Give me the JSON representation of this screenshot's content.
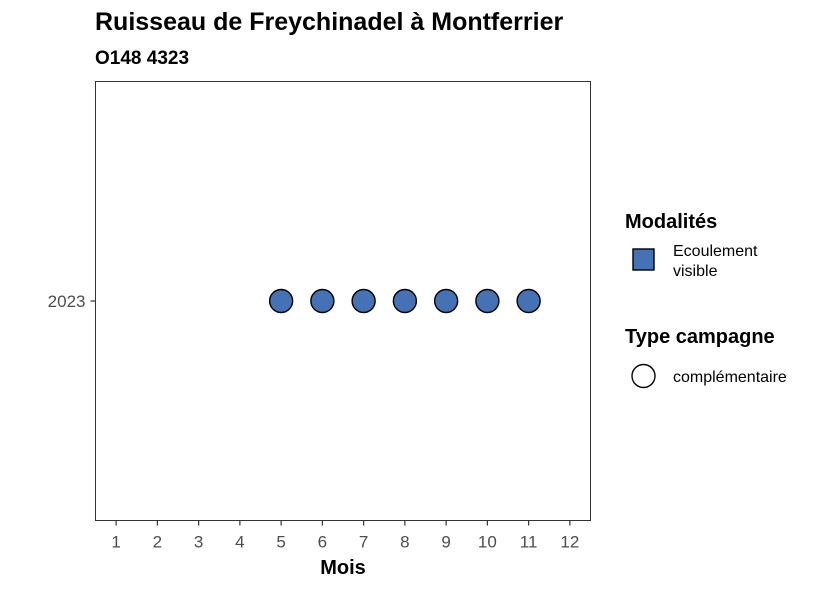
{
  "chart_data": {
    "type": "scatter",
    "title": "Ruisseau de Freychinadel à Montferrier",
    "subtitle": "O148 4323",
    "xlabel": "Mois",
    "ylabel": "",
    "x_ticks": [
      "1",
      "2",
      "3",
      "4",
      "5",
      "6",
      "7",
      "8",
      "9",
      "10",
      "11",
      "12"
    ],
    "y_categories": [
      "2023"
    ],
    "xlim": [
      1,
      12
    ],
    "grid": false,
    "points": [
      {
        "x": 5,
        "y": "2023",
        "modalite": "Ecoulement visible",
        "campagne": "complémentaire"
      },
      {
        "x": 6,
        "y": "2023",
        "modalite": "Ecoulement visible",
        "campagne": "complémentaire"
      },
      {
        "x": 7,
        "y": "2023",
        "modalite": "Ecoulement visible",
        "campagne": "complémentaire"
      },
      {
        "x": 8,
        "y": "2023",
        "modalite": "Ecoulement visible",
        "campagne": "complémentaire"
      },
      {
        "x": 9,
        "y": "2023",
        "modalite": "Ecoulement visible",
        "campagne": "complémentaire"
      },
      {
        "x": 10,
        "y": "2023",
        "modalite": "Ecoulement visible",
        "campagne": "complémentaire"
      },
      {
        "x": 11,
        "y": "2023",
        "modalite": "Ecoulement visible",
        "campagne": "complémentaire"
      }
    ],
    "legend": {
      "placement": "right",
      "fill": {
        "title": "Modalités",
        "entries": [
          {
            "label": "Ecoulement visible",
            "label_lines": [
              "Ecoulement",
              "visible"
            ],
            "color": "#4572b5"
          }
        ]
      },
      "shape": {
        "title": "Type campagne",
        "entries": [
          {
            "label": "complémentaire",
            "shape": "circle"
          }
        ]
      }
    }
  }
}
